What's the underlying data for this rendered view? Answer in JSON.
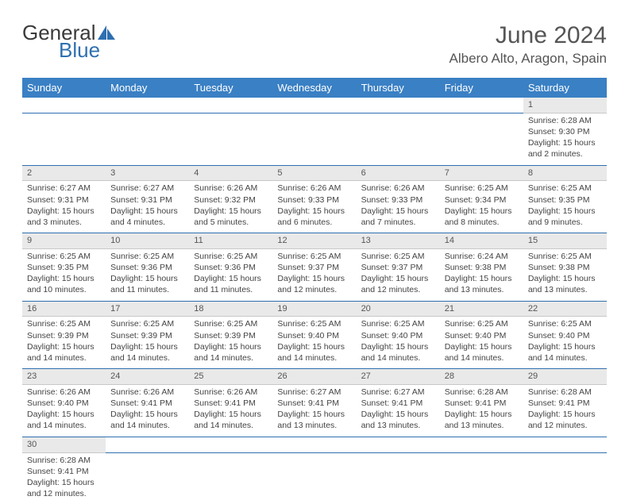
{
  "brand": {
    "part1": "General",
    "part2": "Blue"
  },
  "title": "June 2024",
  "location": "Albero Alto, Aragon, Spain",
  "colors": {
    "header_bg": "#3a80c4",
    "rule": "#2f6fb0",
    "daynum_bg": "#e9e9e9",
    "brand_blue": "#2f6fb0"
  },
  "dow": [
    "Sunday",
    "Monday",
    "Tuesday",
    "Wednesday",
    "Thursday",
    "Friday",
    "Saturday"
  ],
  "weeks": [
    [
      null,
      null,
      null,
      null,
      null,
      null,
      {
        "n": "1",
        "sr": "6:28 AM",
        "ss": "9:30 PM",
        "dl": "15 hours and 2 minutes."
      }
    ],
    [
      {
        "n": "2",
        "sr": "6:27 AM",
        "ss": "9:31 PM",
        "dl": "15 hours and 3 minutes."
      },
      {
        "n": "3",
        "sr": "6:27 AM",
        "ss": "9:31 PM",
        "dl": "15 hours and 4 minutes."
      },
      {
        "n": "4",
        "sr": "6:26 AM",
        "ss": "9:32 PM",
        "dl": "15 hours and 5 minutes."
      },
      {
        "n": "5",
        "sr": "6:26 AM",
        "ss": "9:33 PM",
        "dl": "15 hours and 6 minutes."
      },
      {
        "n": "6",
        "sr": "6:26 AM",
        "ss": "9:33 PM",
        "dl": "15 hours and 7 minutes."
      },
      {
        "n": "7",
        "sr": "6:25 AM",
        "ss": "9:34 PM",
        "dl": "15 hours and 8 minutes."
      },
      {
        "n": "8",
        "sr": "6:25 AM",
        "ss": "9:35 PM",
        "dl": "15 hours and 9 minutes."
      }
    ],
    [
      {
        "n": "9",
        "sr": "6:25 AM",
        "ss": "9:35 PM",
        "dl": "15 hours and 10 minutes."
      },
      {
        "n": "10",
        "sr": "6:25 AM",
        "ss": "9:36 PM",
        "dl": "15 hours and 11 minutes."
      },
      {
        "n": "11",
        "sr": "6:25 AM",
        "ss": "9:36 PM",
        "dl": "15 hours and 11 minutes."
      },
      {
        "n": "12",
        "sr": "6:25 AM",
        "ss": "9:37 PM",
        "dl": "15 hours and 12 minutes."
      },
      {
        "n": "13",
        "sr": "6:25 AM",
        "ss": "9:37 PM",
        "dl": "15 hours and 12 minutes."
      },
      {
        "n": "14",
        "sr": "6:24 AM",
        "ss": "9:38 PM",
        "dl": "15 hours and 13 minutes."
      },
      {
        "n": "15",
        "sr": "6:25 AM",
        "ss": "9:38 PM",
        "dl": "15 hours and 13 minutes."
      }
    ],
    [
      {
        "n": "16",
        "sr": "6:25 AM",
        "ss": "9:39 PM",
        "dl": "15 hours and 14 minutes."
      },
      {
        "n": "17",
        "sr": "6:25 AM",
        "ss": "9:39 PM",
        "dl": "15 hours and 14 minutes."
      },
      {
        "n": "18",
        "sr": "6:25 AM",
        "ss": "9:39 PM",
        "dl": "15 hours and 14 minutes."
      },
      {
        "n": "19",
        "sr": "6:25 AM",
        "ss": "9:40 PM",
        "dl": "15 hours and 14 minutes."
      },
      {
        "n": "20",
        "sr": "6:25 AM",
        "ss": "9:40 PM",
        "dl": "15 hours and 14 minutes."
      },
      {
        "n": "21",
        "sr": "6:25 AM",
        "ss": "9:40 PM",
        "dl": "15 hours and 14 minutes."
      },
      {
        "n": "22",
        "sr": "6:25 AM",
        "ss": "9:40 PM",
        "dl": "15 hours and 14 minutes."
      }
    ],
    [
      {
        "n": "23",
        "sr": "6:26 AM",
        "ss": "9:40 PM",
        "dl": "15 hours and 14 minutes."
      },
      {
        "n": "24",
        "sr": "6:26 AM",
        "ss": "9:41 PM",
        "dl": "15 hours and 14 minutes."
      },
      {
        "n": "25",
        "sr": "6:26 AM",
        "ss": "9:41 PM",
        "dl": "15 hours and 14 minutes."
      },
      {
        "n": "26",
        "sr": "6:27 AM",
        "ss": "9:41 PM",
        "dl": "15 hours and 13 minutes."
      },
      {
        "n": "27",
        "sr": "6:27 AM",
        "ss": "9:41 PM",
        "dl": "15 hours and 13 minutes."
      },
      {
        "n": "28",
        "sr": "6:28 AM",
        "ss": "9:41 PM",
        "dl": "15 hours and 13 minutes."
      },
      {
        "n": "29",
        "sr": "6:28 AM",
        "ss": "9:41 PM",
        "dl": "15 hours and 12 minutes."
      }
    ],
    [
      {
        "n": "30",
        "sr": "6:28 AM",
        "ss": "9:41 PM",
        "dl": "15 hours and 12 minutes."
      },
      null,
      null,
      null,
      null,
      null,
      null
    ]
  ],
  "labels": {
    "sunrise": "Sunrise: ",
    "sunset": "Sunset: ",
    "daylight": "Daylight: "
  }
}
